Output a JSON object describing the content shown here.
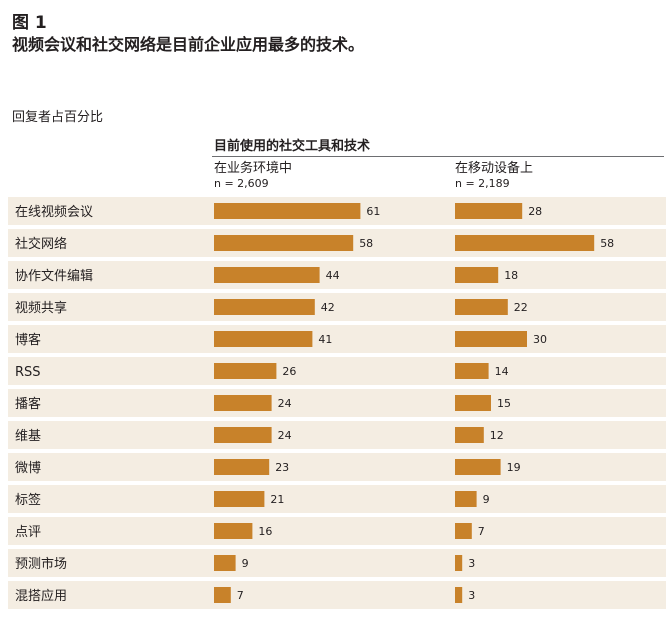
{
  "figure": {
    "label": "图 1",
    "title": "视频会议和社交网络是目前企业应用最多的技术。",
    "respondents_label": "回复者占百分比",
    "group_title": "目前使用的社交工具和技术"
  },
  "chart_data": {
    "type": "bar",
    "orientation": "horizontal",
    "categories": [
      "在线视频会议",
      "社交网络",
      "协作文件编辑",
      "视频共享",
      "博客",
      "RSS",
      "播客",
      "维基",
      "微博",
      "标签",
      "点评",
      "预测市场",
      "混搭应用"
    ],
    "series": [
      {
        "name": "在业务环境中",
        "n_label": "n = 2,609",
        "values": [
          61,
          58,
          44,
          42,
          41,
          26,
          24,
          24,
          23,
          21,
          16,
          9,
          7
        ]
      },
      {
        "name": "在移动设备上",
        "n_label": "n = 2,189",
        "values": [
          28,
          58,
          18,
          22,
          30,
          14,
          15,
          12,
          19,
          9,
          7,
          3,
          3
        ]
      }
    ],
    "unit": "percent",
    "data_labels": true,
    "colors": {
      "bar": "#c8822a",
      "row_band": "#f4ede2"
    }
  }
}
